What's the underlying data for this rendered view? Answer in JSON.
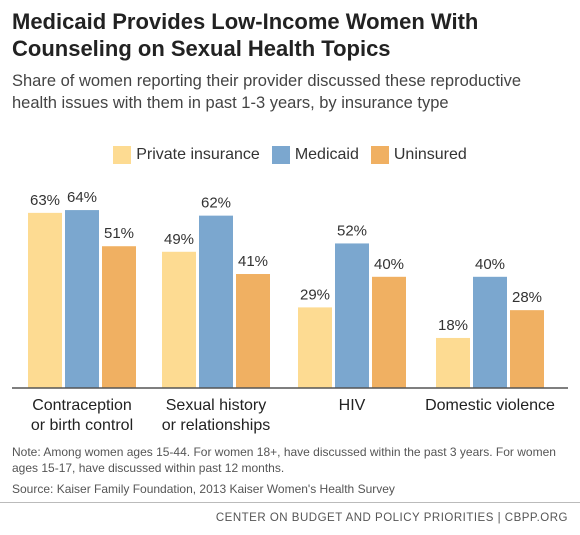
{
  "chart_data": {
    "type": "bar",
    "title": "Medicaid Provides Low-Income Women With Counseling on Sexual Health Topics",
    "subtitle": "Share of women reporting their provider discussed these reproductive health issues with them in past 1-3 years, by insurance type",
    "categories": [
      "Contraception\nor birth control",
      "Sexual history\nor relationships",
      "HIV",
      "Domestic violence"
    ],
    "series": [
      {
        "name": "Private insurance",
        "color": "#fddb92",
        "values": [
          63,
          49,
          29,
          18
        ],
        "value_labels": [
          "63%",
          "49%",
          "29%",
          "18%"
        ]
      },
      {
        "name": "Medicaid",
        "color": "#7ba7cf",
        "values": [
          64,
          62,
          52,
          40
        ],
        "value_labels": [
          "64%",
          "62%",
          "52%",
          "40%"
        ]
      },
      {
        "name": "Uninsured",
        "color": "#f0b062",
        "values": [
          51,
          41,
          40,
          28
        ],
        "value_labels": [
          "51%",
          "41%",
          "40%",
          "28%"
        ]
      }
    ],
    "legend": "top",
    "note": "Note: Among women ages 15-44. For women 18+, have discussed within the past 3 years. For women ages 15-17, have discussed within past 12 months.",
    "source": "Source: Kaiser Family Foundation, 2013 Kaiser Women's Health Survey",
    "footer": "CENTER ON BUDGET AND POLICY PRIORITIES | CBPP.ORG"
  }
}
